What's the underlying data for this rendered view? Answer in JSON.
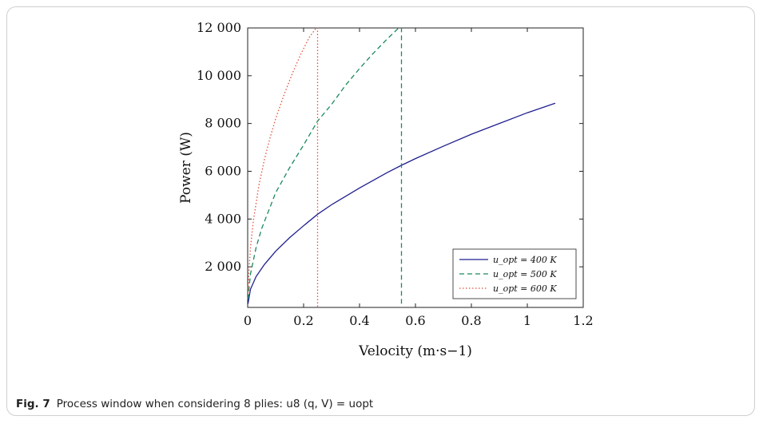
{
  "caption": {
    "label": "Fig. 7",
    "text": "Process window when considering 8 plies: u8 (q, V) = uopt"
  },
  "chart_data": {
    "type": "line",
    "xlabel": "Velocity (m·s−1)",
    "ylabel": "Power (W)",
    "xlim": [
      0,
      1.2
    ],
    "ylim": [
      300,
      12000
    ],
    "xticks": [
      0,
      0.2,
      0.4,
      0.6,
      0.8,
      1,
      1.2
    ],
    "xtick_labels": [
      "0",
      "0.2",
      "0.4",
      "0.6",
      "0.8",
      "1",
      "1.2"
    ],
    "yticks": [
      2000,
      4000,
      6000,
      8000,
      10000,
      12000
    ],
    "ytick_labels": [
      "2 000",
      "4 000",
      "6 000",
      "8 000",
      "10 000",
      "12 000"
    ],
    "legend_position": "lower-right",
    "grid": false,
    "series": [
      {
        "name": "u_opt = 400 K",
        "color": "#1f1f8f",
        "dash": "solid",
        "x": [
          0.001,
          0.01,
          0.03,
          0.06,
          0.1,
          0.15,
          0.2,
          0.25,
          0.3,
          0.4,
          0.5,
          0.55,
          0.6,
          0.7,
          0.8,
          0.9,
          1.0,
          1.1
        ],
        "y": [
          450,
          1060,
          1590,
          2100,
          2650,
          3220,
          3720,
          4200,
          4600,
          5300,
          5950,
          6250,
          6530,
          7050,
          7550,
          8000,
          8450,
          8850
        ]
      },
      {
        "name": "u_opt = 500 K",
        "color": "#1b8a5a",
        "dash": "dashed",
        "x": [
          0.001,
          0.01,
          0.03,
          0.05,
          0.08,
          0.1,
          0.15,
          0.2,
          0.25,
          0.3,
          0.35,
          0.4,
          0.45,
          0.5,
          0.54,
          0.55,
          0.55
        ],
        "y": [
          650,
          1700,
          2800,
          3600,
          4500,
          5100,
          6150,
          7100,
          8100,
          8800,
          9600,
          10300,
          10950,
          11550,
          12000,
          12000,
          300
        ]
      },
      {
        "name": "u_opt = 600 K",
        "color": "#e0503a",
        "dash": "dotted",
        "x": [
          0.001,
          0.005,
          0.01,
          0.02,
          0.04,
          0.06,
          0.08,
          0.1,
          0.13,
          0.16,
          0.19,
          0.22,
          0.245,
          0.25,
          0.25
        ],
        "y": [
          900,
          1900,
          2800,
          3900,
          5400,
          6500,
          7400,
          8200,
          9200,
          10100,
          10900,
          11600,
          12000,
          12000,
          300
        ]
      }
    ]
  }
}
